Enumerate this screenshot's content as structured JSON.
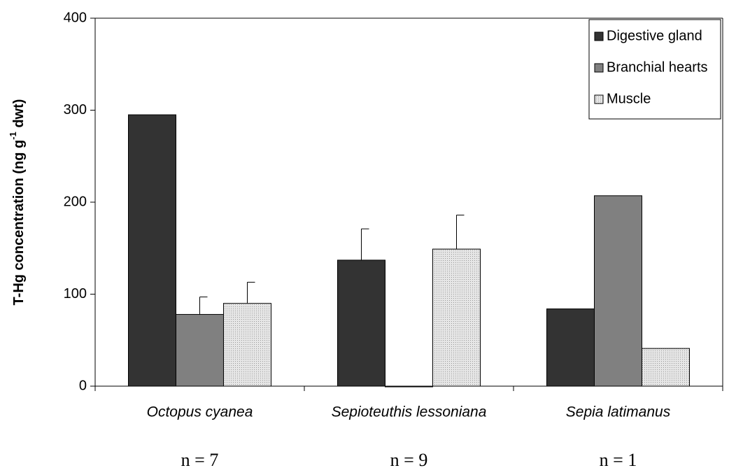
{
  "chart_data": {
    "type": "bar",
    "ylabel": {
      "text": "T-Hg concentration (ng g",
      "superscript": "-1",
      "suffix": " dwt)"
    },
    "categories": [
      "Octopus cyanea",
      "Sepioteuthis lessoniana",
      "Sepia latimanus"
    ],
    "sample_sizes": [
      "n = 7",
      "n = 9",
      "n = 1"
    ],
    "series": [
      {
        "name": "Digestive gland",
        "color": "#333333",
        "values": [
          295,
          137,
          84
        ],
        "errors": [
          null,
          34,
          null
        ]
      },
      {
        "name": "Branchial hearts",
        "color": "#808080",
        "values": [
          78,
          0,
          207
        ],
        "errors": [
          19,
          null,
          null
        ]
      },
      {
        "name": "Muscle",
        "color": "#d9d9d9",
        "values": [
          90,
          149,
          41
        ],
        "errors": [
          23,
          37,
          null
        ]
      }
    ],
    "ylim": [
      0,
      400
    ],
    "yticks": [
      0,
      100,
      200,
      300,
      400
    ],
    "legend": "top-right"
  }
}
